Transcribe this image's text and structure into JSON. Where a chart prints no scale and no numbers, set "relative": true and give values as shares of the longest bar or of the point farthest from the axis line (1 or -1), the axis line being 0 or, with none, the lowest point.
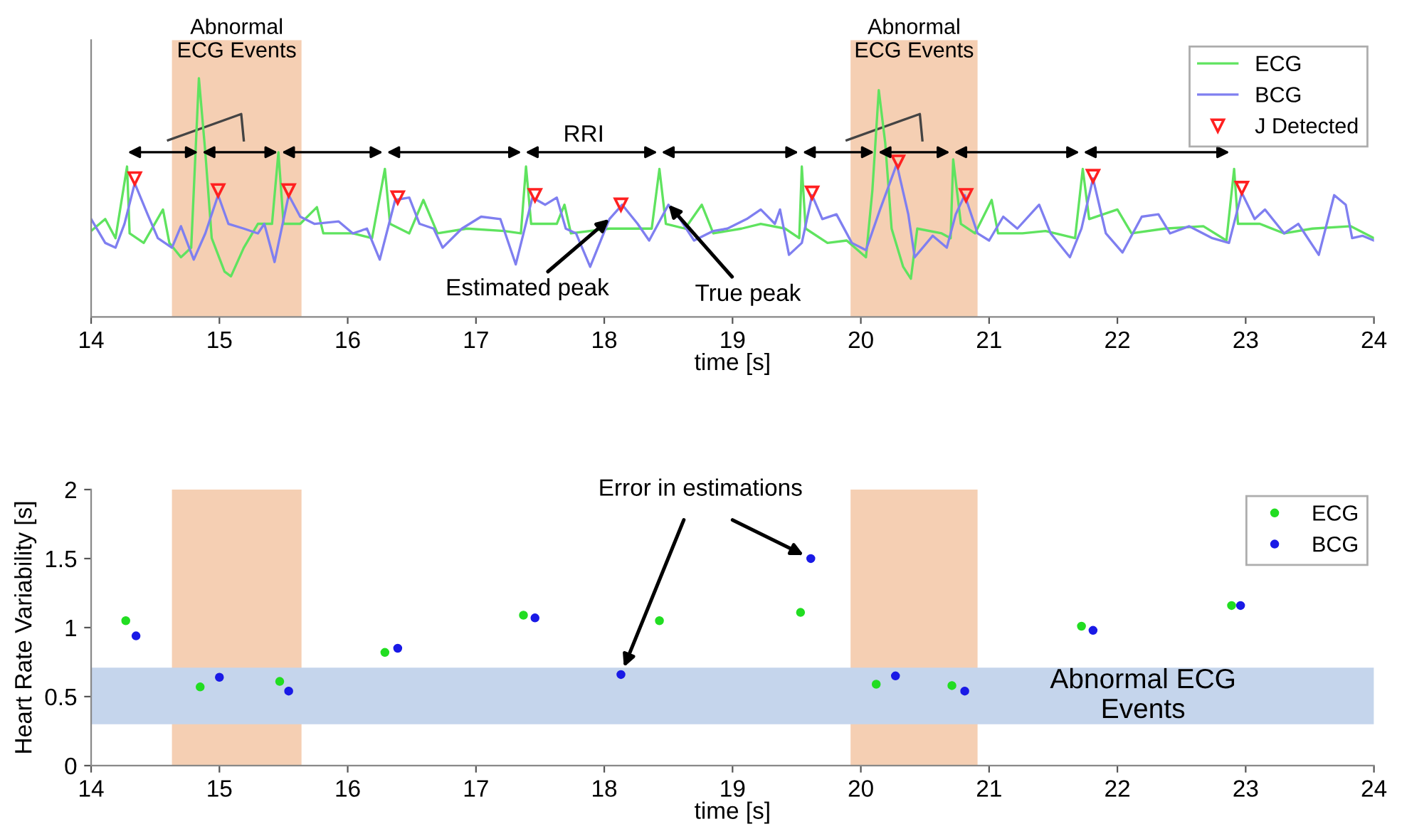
{
  "chart_data": [
    {
      "type": "line",
      "relative": true,
      "xlim": [
        14,
        24
      ],
      "xticks": [
        14,
        15,
        16,
        17,
        18,
        19,
        20,
        21,
        22,
        23,
        24
      ],
      "xlabel": "time [s]",
      "tick_labels": "x",
      "legend": "top right",
      "marker": "none",
      "series": [
        {
          "name": "ECG",
          "color": "#5fe35f",
          "x": [
            14.0,
            14.11,
            14.19,
            14.28,
            14.3,
            14.41,
            14.56,
            14.61,
            14.7,
            14.78,
            14.84,
            14.89,
            14.94,
            15.04,
            15.09,
            15.19,
            15.3,
            15.41,
            15.46,
            15.5,
            15.63,
            15.76,
            15.81,
            16.04,
            16.19,
            16.29,
            16.33,
            16.48,
            16.59,
            16.7,
            16.93,
            17.22,
            17.35,
            17.39,
            17.43,
            17.63,
            17.69,
            17.74,
            18.04,
            18.37,
            18.43,
            18.48,
            18.63,
            18.76,
            18.85,
            19.07,
            19.22,
            19.41,
            19.52,
            19.54,
            19.57,
            19.74,
            19.89,
            20.04,
            20.09,
            20.14,
            20.19,
            20.24,
            20.33,
            20.39,
            20.44,
            20.63,
            20.7,
            20.72,
            20.78,
            20.89,
            21.02,
            21.07,
            21.26,
            21.44,
            21.67,
            21.73,
            21.78,
            22.0,
            22.11,
            22.37,
            22.67,
            22.85,
            22.91,
            22.94,
            23.11,
            23.3,
            23.52,
            23.82,
            24.0
          ],
          "values": [
            0.36,
            0.41,
            0.33,
            0.63,
            0.35,
            0.31,
            0.45,
            0.31,
            0.25,
            0.29,
            1.0,
            0.69,
            0.33,
            0.19,
            0.17,
            0.29,
            0.39,
            0.39,
            0.69,
            0.39,
            0.39,
            0.46,
            0.35,
            0.35,
            0.33,
            0.62,
            0.39,
            0.35,
            0.49,
            0.35,
            0.37,
            0.36,
            0.35,
            0.63,
            0.39,
            0.39,
            0.47,
            0.35,
            0.37,
            0.37,
            0.62,
            0.39,
            0.37,
            0.47,
            0.35,
            0.37,
            0.39,
            0.37,
            0.33,
            0.63,
            0.37,
            0.31,
            0.32,
            0.25,
            0.53,
            0.95,
            0.73,
            0.37,
            0.21,
            0.16,
            0.37,
            0.35,
            0.33,
            0.66,
            0.39,
            0.35,
            0.49,
            0.35,
            0.35,
            0.36,
            0.33,
            0.62,
            0.41,
            0.45,
            0.35,
            0.37,
            0.38,
            0.32,
            0.62,
            0.39,
            0.39,
            0.35,
            0.37,
            0.38,
            0.33
          ]
        },
        {
          "name": "BCG",
          "color": "#7f7ff0",
          "x": [
            14.0,
            14.11,
            14.19,
            14.26,
            14.34,
            14.44,
            14.52,
            14.63,
            14.7,
            14.8,
            14.89,
            14.99,
            15.07,
            15.19,
            15.3,
            15.35,
            15.43,
            15.54,
            15.63,
            15.74,
            15.93,
            16.04,
            16.15,
            16.25,
            16.37,
            16.48,
            16.56,
            16.67,
            16.74,
            16.89,
            17.04,
            17.19,
            17.31,
            17.44,
            17.54,
            17.63,
            17.7,
            17.78,
            17.89,
            18.04,
            18.14,
            18.26,
            18.35,
            18.5,
            18.59,
            18.7,
            18.85,
            18.96,
            19.11,
            19.22,
            19.33,
            19.37,
            19.44,
            19.54,
            19.62,
            19.7,
            19.81,
            19.93,
            20.04,
            20.15,
            20.28,
            20.37,
            20.42,
            20.56,
            20.67,
            20.74,
            20.81,
            20.91,
            21.0,
            21.11,
            21.22,
            21.39,
            21.48,
            21.63,
            21.72,
            21.81,
            21.91,
            22.04,
            22.19,
            22.32,
            22.41,
            22.56,
            22.74,
            22.87,
            22.97,
            23.07,
            23.15,
            23.3,
            23.41,
            23.57,
            23.69,
            23.78,
            23.83,
            23.91,
            24.0
          ],
          "values": [
            0.41,
            0.31,
            0.29,
            0.39,
            0.56,
            0.43,
            0.33,
            0.29,
            0.38,
            0.24,
            0.35,
            0.51,
            0.39,
            0.37,
            0.35,
            0.39,
            0.23,
            0.51,
            0.42,
            0.39,
            0.4,
            0.35,
            0.37,
            0.24,
            0.49,
            0.5,
            0.39,
            0.37,
            0.29,
            0.37,
            0.42,
            0.41,
            0.22,
            0.5,
            0.47,
            0.5,
            0.37,
            0.35,
            0.21,
            0.41,
            0.47,
            0.39,
            0.32,
            0.47,
            0.41,
            0.32,
            0.36,
            0.37,
            0.41,
            0.45,
            0.39,
            0.45,
            0.26,
            0.31,
            0.51,
            0.41,
            0.43,
            0.31,
            0.28,
            0.45,
            0.64,
            0.43,
            0.25,
            0.34,
            0.29,
            0.43,
            0.51,
            0.35,
            0.32,
            0.42,
            0.37,
            0.47,
            0.35,
            0.25,
            0.37,
            0.58,
            0.35,
            0.27,
            0.42,
            0.43,
            0.35,
            0.38,
            0.33,
            0.31,
            0.52,
            0.41,
            0.45,
            0.35,
            0.39,
            0.26,
            0.51,
            0.47,
            0.33,
            0.34,
            0.32
          ]
        },
        {
          "name": "J Detected",
          "type": "scatter",
          "marker": "triangle",
          "color": "#ff2020",
          "x": [
            14.34,
            14.99,
            15.54,
            16.39,
            17.46,
            18.13,
            19.62,
            20.29,
            20.82,
            21.81,
            22.97
          ],
          "values": [
            0.58,
            0.53,
            0.53,
            0.5,
            0.51,
            0.47,
            0.52,
            0.65,
            0.51,
            0.59,
            0.54
          ]
        }
      ],
      "bands": [
        {
          "axis": "x",
          "from": 14.63,
          "to": 15.64,
          "label": "Abnormal\nECG Events",
          "color": "#f5cfb3"
        },
        {
          "axis": "x",
          "from": 19.92,
          "to": 20.91,
          "label": "Abnormal\nECG Events",
          "color": "#f5cfb3"
        }
      ],
      "annotations": [
        "RRI",
        {
          "text": "Estimated peak",
          "x": 18.04,
          "y": 0.41
        },
        {
          "text": "True peak",
          "x": 18.5,
          "y": 0.47
        }
      ]
    },
    {
      "type": "scatter",
      "xlim": [
        14,
        24
      ],
      "xticks": [
        14,
        15,
        16,
        17,
        18,
        19,
        20,
        21,
        22,
        23,
        24
      ],
      "ylim": [
        0,
        2
      ],
      "yticks": [
        0,
        0.5,
        1,
        1.5,
        2
      ],
      "xlabel": "time [s]",
      "ylabel": "Heart Rate Variability [s]",
      "legend": "top right",
      "marker": "circle",
      "series": [
        {
          "name": "ECG",
          "color": "#22dd22",
          "x": [
            14.27,
            14.85,
            15.47,
            16.29,
            17.37,
            18.43,
            19.53,
            20.12,
            20.71,
            21.72,
            22.89
          ],
          "values": [
            1.05,
            0.57,
            0.61,
            0.82,
            1.09,
            1.05,
            1.11,
            0.59,
            0.58,
            1.01,
            1.16
          ]
        },
        {
          "name": "BCG",
          "color": "#1a1ae6",
          "x": [
            14.35,
            15.0,
            15.54,
            16.39,
            17.46,
            18.13,
            19.61,
            20.27,
            20.81,
            21.81,
            22.96
          ],
          "values": [
            0.94,
            0.64,
            0.54,
            0.85,
            1.07,
            0.66,
            1.5,
            0.65,
            0.54,
            0.98,
            1.16
          ]
        }
      ],
      "bands": [
        {
          "axis": "x",
          "from": 14.63,
          "to": 15.64,
          "color": "#f5cfb3"
        },
        {
          "axis": "x",
          "from": 19.92,
          "to": 20.91,
          "color": "#f5cfb3"
        },
        {
          "axis": "y",
          "from": 0.3,
          "to": 0.71,
          "label": "Abnormal ECG\nEvents",
          "color": "#c5d5ec"
        }
      ],
      "annotations": [
        {
          "text": "Error in estimations",
          "x": 18.13,
          "y": 0.66
        }
      ]
    }
  ]
}
